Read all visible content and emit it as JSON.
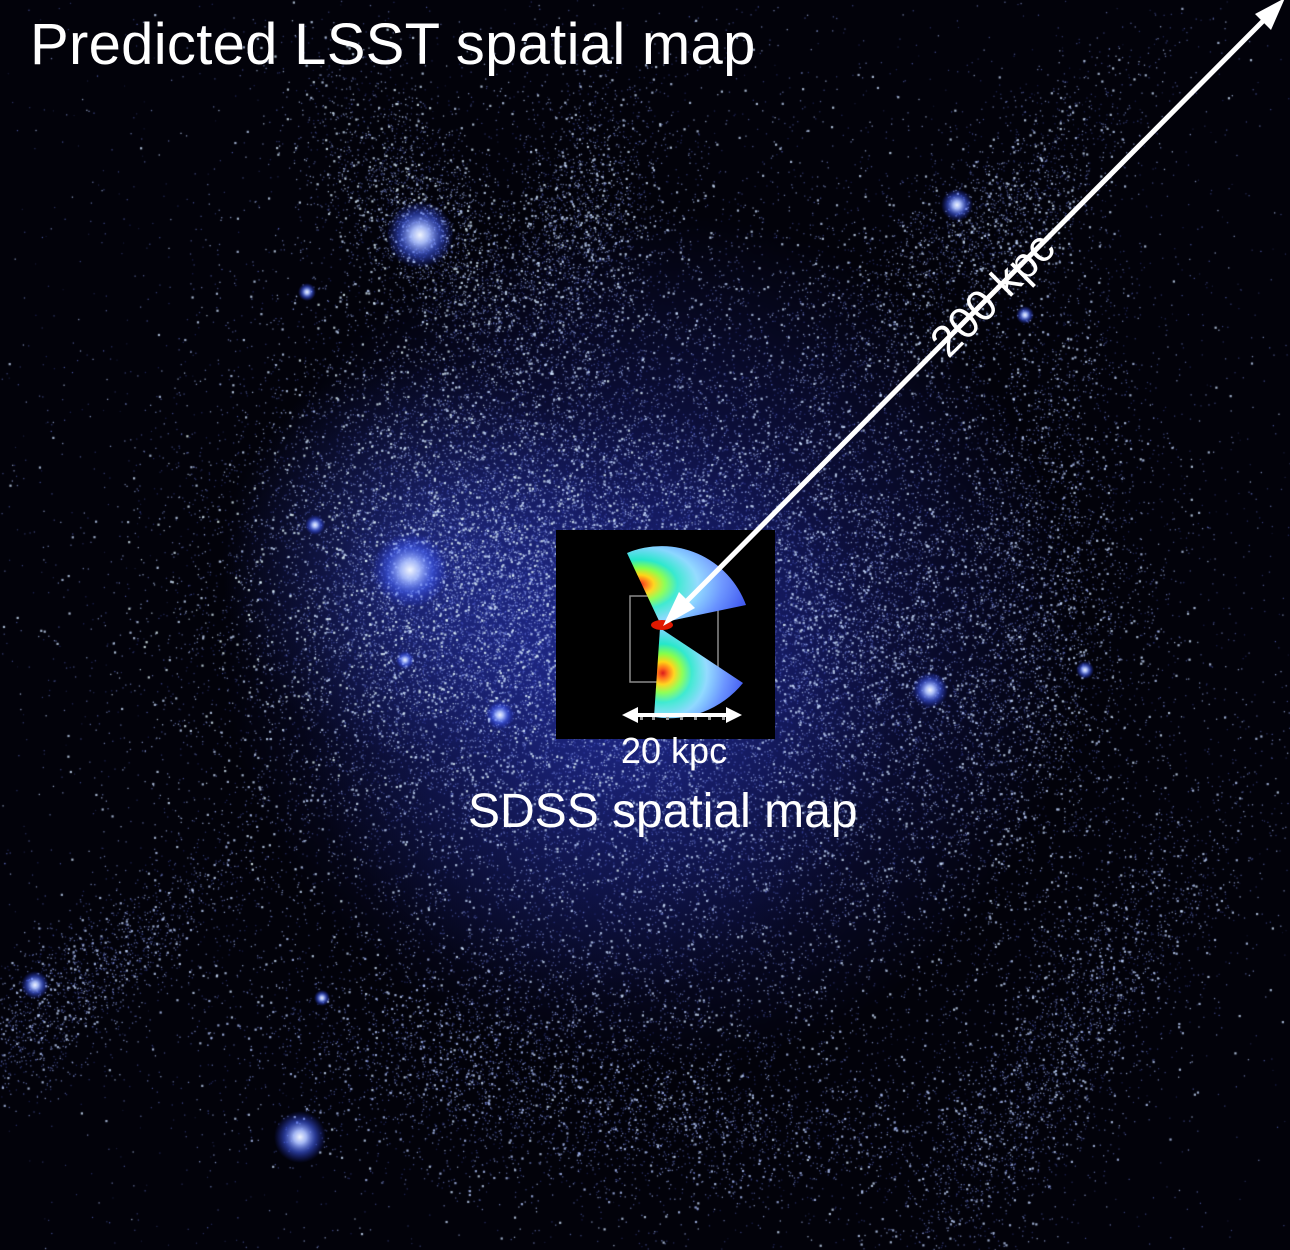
{
  "title": "Predicted LSST spatial map",
  "big_scale": {
    "label": "200 kpc"
  },
  "inset": {
    "scale_label": "20 kpc",
    "caption": "SDSS spatial map"
  },
  "colors": {
    "background": "#02020a",
    "halo_blue": "#3a4fe0",
    "halo_highlight": "#dfe6ff",
    "arrow": "#ffffff",
    "text": "#ffffff"
  }
}
